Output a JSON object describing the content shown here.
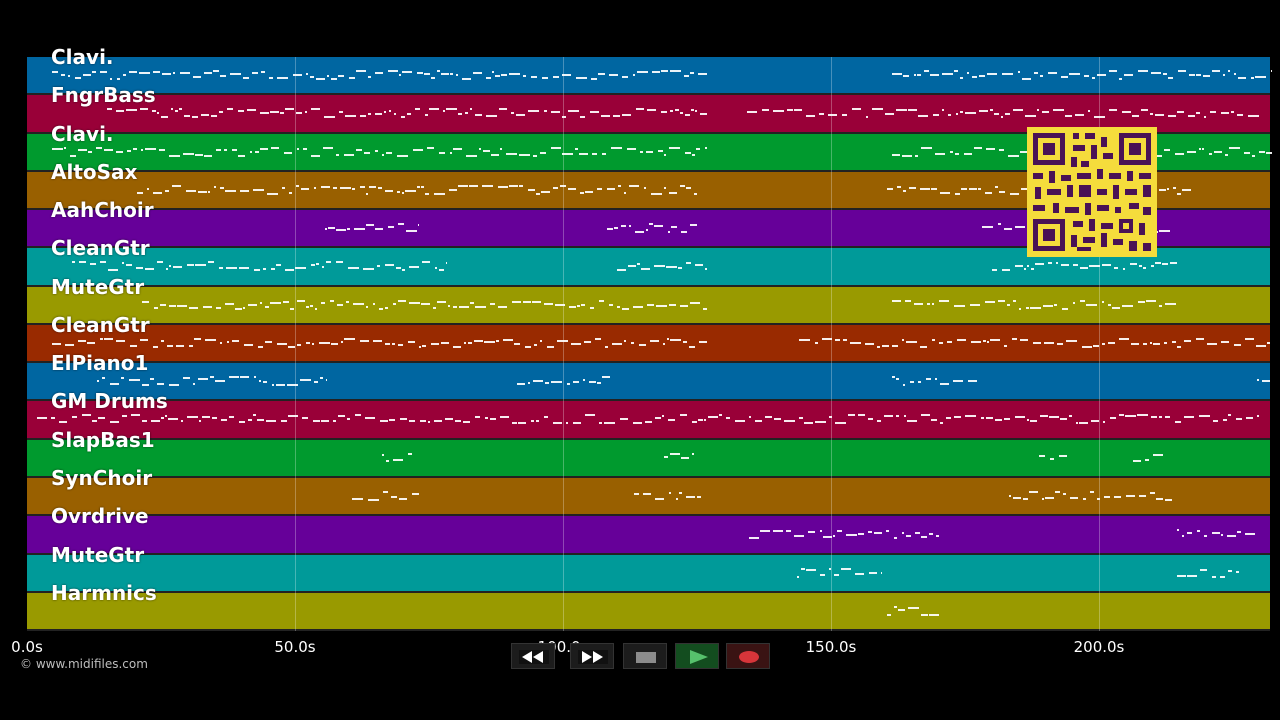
{
  "colors": {
    "lane_blue": "#0066a1",
    "lane_crimson": "#990038",
    "lane_green": "#009a2e",
    "lane_orange": "#996000",
    "lane_purple": "#660099",
    "lane_teal": "#009a99",
    "lane_olive": "#999a00",
    "lane_rust": "#992a00",
    "qr_yellow": "#f5dc3c",
    "qr_dark": "#4a1255"
  },
  "tracks": [
    {
      "name": "Clavi.",
      "color": "#0066a1"
    },
    {
      "name": "FngrBass",
      "color": "#990038"
    },
    {
      "name": "Clavi.",
      "color": "#009a2e"
    },
    {
      "name": "AltoSax",
      "color": "#996000"
    },
    {
      "name": "AahChoir",
      "color": "#660099"
    },
    {
      "name": "CleanGtr",
      "color": "#009a99"
    },
    {
      "name": "MuteGtr",
      "color": "#999a00"
    },
    {
      "name": "CleanGtr",
      "color": "#992a00"
    },
    {
      "name": "ElPiano1",
      "color": "#0066a1"
    },
    {
      "name": "GM Drums",
      "color": "#990038"
    },
    {
      "name": "SlapBas1",
      "color": "#009a2e"
    },
    {
      "name": "SynChoir",
      "color": "#996000"
    },
    {
      "name": "Ovrdrive",
      "color": "#660099"
    },
    {
      "name": "MuteGtr",
      "color": "#009a99"
    },
    {
      "name": "Harmnics",
      "color": "#999a00"
    }
  ],
  "timeline": {
    "ticks": [
      "0.0s",
      "50.0s",
      "100.0s",
      "150.0s",
      "200.0s"
    ]
  },
  "footer": {
    "copyright": "© www.midifiles.com"
  },
  "transport": {
    "buttons": [
      {
        "name": "rewind",
        "icon": "rewind-icon"
      },
      {
        "name": "fast-forward",
        "icon": "fast-forward-icon"
      },
      {
        "name": "stop",
        "icon": "stop-icon"
      },
      {
        "name": "play",
        "icon": "play-icon"
      },
      {
        "name": "record",
        "icon": "record-icon"
      }
    ]
  }
}
